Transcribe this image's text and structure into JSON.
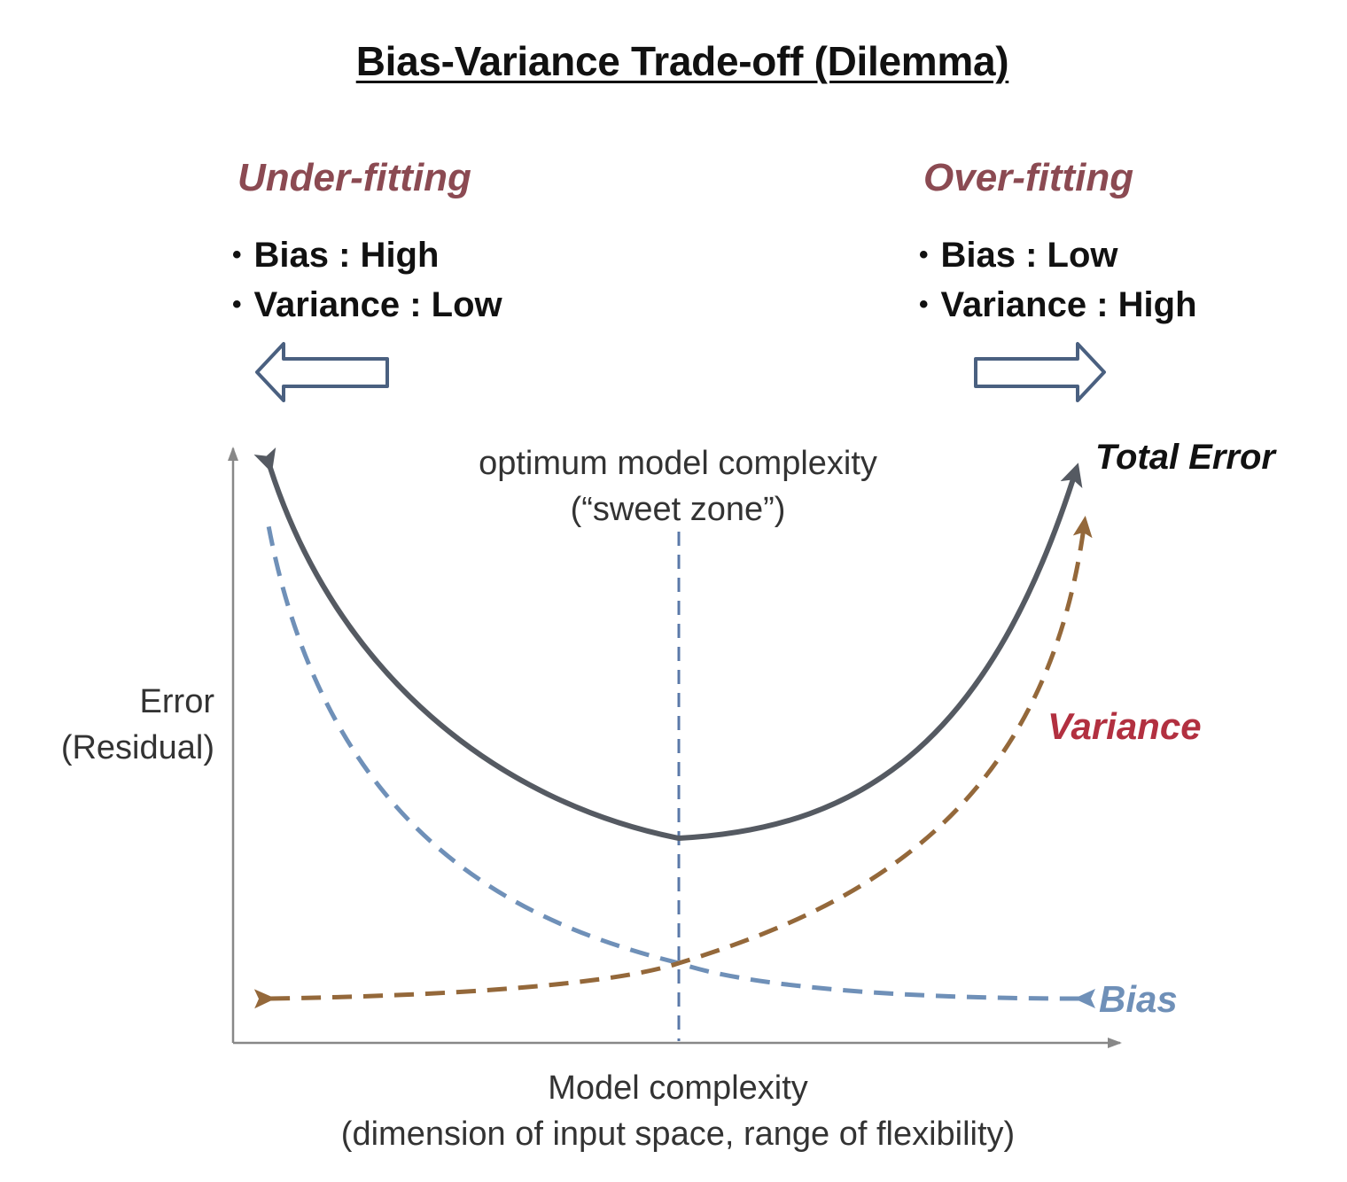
{
  "title": "Bias-Variance Trade-off (Dilemma)",
  "under_fitting": {
    "heading": "Under-fitting",
    "bias": "Bias : High",
    "variance": "Variance : Low"
  },
  "over_fitting": {
    "heading": "Over-fitting",
    "bias": "Bias : Low",
    "variance": "Variance : High"
  },
  "optimum": {
    "line1": "optimum model complexity",
    "line2": "(“sweet zone”)"
  },
  "y_axis": {
    "line1": "Error",
    "line2": "(Residual)"
  },
  "x_axis": {
    "line1": "Model complexity",
    "line2": "(dimension of input space, range of flexibility)"
  },
  "curves": {
    "total_error": "Total Error",
    "variance": "Variance",
    "bias": "Bias"
  },
  "colors": {
    "total_error": "#555a62",
    "bias": "#6f90b8",
    "variance": "#94683a",
    "regime_heading": "#8b4a52",
    "variance_label": "#b23040",
    "bias_label": "#6f90b8",
    "optimum_line": "#5a78a8",
    "arrow_outline": "#4a6080",
    "axis": "#888888"
  }
}
